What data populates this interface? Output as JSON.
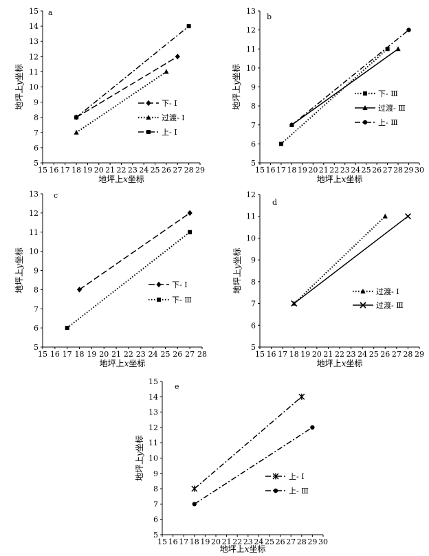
{
  "chart_data": [
    {
      "id": "a",
      "type": "line",
      "panel_label": "a",
      "xlabel_pre": "地坪上",
      "xlabel_var": "x",
      "xlabel_post": "坐标",
      "ylabel_pre": "地坪上",
      "ylabel_var": "y",
      "ylabel_post": "坐标",
      "xlim": [
        15,
        29
      ],
      "ylim": [
        5,
        15
      ],
      "xticks": [
        "15",
        "16",
        "17",
        "18",
        "19",
        "20",
        "21",
        "22",
        "23",
        "24",
        "25",
        "26",
        "27",
        "28",
        "29"
      ],
      "yticks": [
        "5",
        "6",
        "7",
        "8",
        "9",
        "10",
        "11",
        "12",
        "13",
        "14",
        "15"
      ],
      "series": [
        {
          "name": "下- Ⅰ",
          "marker": "diamond",
          "dash": "long",
          "x": [
            18,
            27
          ],
          "y": [
            8,
            12
          ]
        },
        {
          "name": "过渡- Ⅰ",
          "marker": "triangle",
          "dash": "dot",
          "x": [
            18,
            26
          ],
          "y": [
            7,
            11
          ]
        },
        {
          "name": "上- Ⅰ",
          "marker": "square",
          "dash": "dashdot",
          "x": [
            18,
            28
          ],
          "y": [
            8,
            14
          ]
        }
      ],
      "legend": "center-right"
    },
    {
      "id": "b",
      "type": "line",
      "panel_label": "b",
      "xlabel_pre": "地坪上",
      "xlabel_var": "x",
      "xlabel_post": "坐标",
      "ylabel_pre": "地坪上",
      "ylabel_var": "y",
      "ylabel_post": "坐标",
      "xlim": [
        15,
        30
      ],
      "ylim": [
        5,
        13
      ],
      "xticks": [
        "15",
        "16",
        "17",
        "18",
        "19",
        "20",
        "21",
        "22",
        "23",
        "24",
        "25",
        "26",
        "27",
        "28",
        "29",
        "30"
      ],
      "yticks": [
        "5",
        "6",
        "7",
        "8",
        "9",
        "10",
        "11",
        "12",
        "13"
      ],
      "series": [
        {
          "name": "下- Ⅲ",
          "marker": "square",
          "dash": "dot",
          "x": [
            17,
            27
          ],
          "y": [
            6,
            11
          ]
        },
        {
          "name": "过渡- Ⅲ",
          "marker": "triangle",
          "dash": "solid",
          "x": [
            18,
            28
          ],
          "y": [
            7,
            11
          ]
        },
        {
          "name": "上- Ⅲ",
          "marker": "circle",
          "dash": "dashdot",
          "x": [
            18,
            29
          ],
          "y": [
            7,
            12
          ]
        }
      ],
      "legend": "center-right"
    },
    {
      "id": "c",
      "type": "line",
      "panel_label": "c",
      "xlabel_pre": "地坪上",
      "xlabel_var": "x",
      "xlabel_post": "坐标",
      "ylabel_pre": "地坪上",
      "ylabel_var": "y",
      "ylabel_post": "坐标",
      "xlim": [
        15,
        28
      ],
      "ylim": [
        5,
        13
      ],
      "xticks": [
        "15",
        "16",
        "17",
        "18",
        "19",
        "20",
        "21",
        "22",
        "23",
        "24",
        "25",
        "26",
        "27",
        "28"
      ],
      "yticks": [
        "5",
        "6",
        "7",
        "8",
        "9",
        "10",
        "11",
        "12",
        "13"
      ],
      "series": [
        {
          "name": "下- Ⅰ",
          "marker": "diamond",
          "dash": "long",
          "x": [
            18,
            27
          ],
          "y": [
            8,
            12
          ]
        },
        {
          "name": "下- Ⅲ",
          "marker": "square",
          "dash": "dot",
          "x": [
            17,
            27
          ],
          "y": [
            6,
            11
          ]
        }
      ],
      "legend": "center-right"
    },
    {
      "id": "d",
      "type": "line",
      "panel_label": "d",
      "xlabel_pre": "地坪上",
      "xlabel_var": "x",
      "xlabel_post": "坐标",
      "ylabel_pre": "地坪上",
      "ylabel_var": "y",
      "ylabel_post": "坐标",
      "xlim": [
        15,
        29
      ],
      "ylim": [
        5,
        12
      ],
      "xticks": [
        "15",
        "16",
        "17",
        "18",
        "19",
        "20",
        "21",
        "22",
        "23",
        "24",
        "25",
        "26",
        "27",
        "28",
        "29"
      ],
      "yticks": [
        "5",
        "6",
        "7",
        "8",
        "9",
        "10",
        "11",
        "12"
      ],
      "series": [
        {
          "name": "过渡- Ⅰ",
          "marker": "triangle",
          "dash": "dot",
          "x": [
            18,
            26
          ],
          "y": [
            7,
            11
          ]
        },
        {
          "name": "过渡- Ⅲ",
          "marker": "x",
          "dash": "solid",
          "x": [
            18,
            28
          ],
          "y": [
            7,
            11
          ]
        }
      ],
      "legend": "lower-right"
    },
    {
      "id": "e",
      "type": "line",
      "panel_label": "e",
      "xlabel_pre": "地坪上",
      "xlabel_var": "x",
      "xlabel_post": "坐标",
      "ylabel_pre": "地坪上",
      "ylabel_var": "y",
      "ylabel_post": "坐标",
      "xlim": [
        15,
        30
      ],
      "ylim": [
        5,
        15
      ],
      "xticks": [
        "15",
        "16",
        "17",
        "18",
        "19",
        "20",
        "21",
        "22",
        "23",
        "24",
        "25",
        "26",
        "27",
        "28",
        "29",
        "30"
      ],
      "yticks": [
        "5",
        "6",
        "7",
        "8",
        "9",
        "10",
        "11",
        "12",
        "13",
        "14",
        "15"
      ],
      "series": [
        {
          "name": "上- Ⅰ",
          "marker": "star",
          "dash": "dashdot",
          "x": [
            18,
            28
          ],
          "y": [
            8,
            14
          ]
        },
        {
          "name": "上- Ⅲ",
          "marker": "circle",
          "dash": "dashdot",
          "x": [
            18,
            29
          ],
          "y": [
            7,
            12
          ]
        }
      ],
      "legend": "lower-right"
    }
  ]
}
